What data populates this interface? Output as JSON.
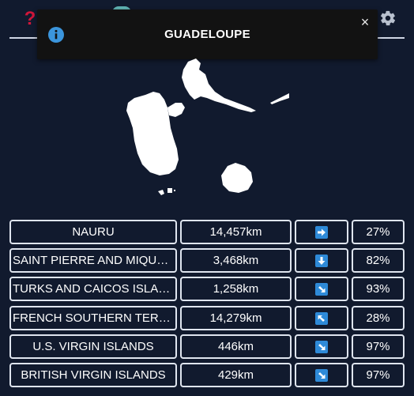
{
  "header": {
    "help_icon": "question-mark-icon",
    "help_glyph": "?",
    "settings_icon": "gear-icon"
  },
  "toast": {
    "title": "GUADELOUPE",
    "icon": "info-icon",
    "close_glyph": "×"
  },
  "colors": {
    "background": "#111a2e",
    "help": "#d0163a",
    "accent": "#2e8ad8",
    "toast_bg": "#121212"
  },
  "guesses": [
    {
      "country": "NAURU",
      "distance": "14,457km",
      "direction": "E",
      "proximity": "27%"
    },
    {
      "country": "SAINT PIERRE AND MIQUELON",
      "distance": "3,468km",
      "direction": "S",
      "proximity": "82%"
    },
    {
      "country": "TURKS AND CAICOS ISLANDS",
      "distance": "1,258km",
      "direction": "SE",
      "proximity": "93%"
    },
    {
      "country": "FRENCH SOUTHERN TERRITORIES",
      "distance": "14,279km",
      "direction": "NW",
      "proximity": "28%"
    },
    {
      "country": "U.S. VIRGIN ISLANDS",
      "distance": "446km",
      "direction": "SE",
      "proximity": "97%"
    },
    {
      "country": "BRITISH VIRGIN ISLANDS",
      "distance": "429km",
      "direction": "SE",
      "proximity": "97%"
    }
  ]
}
